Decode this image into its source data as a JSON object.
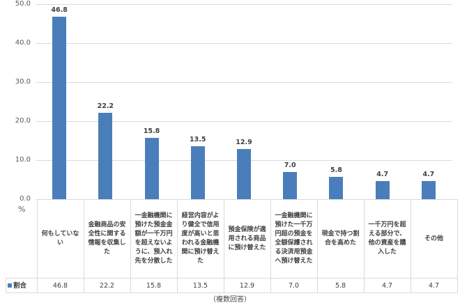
{
  "chart_data": {
    "type": "bar",
    "title": "",
    "xlabel": "",
    "ylabel": "%",
    "ylim": [
      0,
      50
    ],
    "yticks": [
      "0.0",
      "10.0",
      "20.0",
      "30.0",
      "40.0",
      "50.0"
    ],
    "grid": true,
    "legend_position": "data-table",
    "categories": [
      "何もしていない",
      "金融商品の安全性に関する情報を収集した",
      "一金融機関に預けた預金金額が一千万円を超えないように、預入れ先を分散した",
      "経営内容がより健全で信用度が高いと思われる金融機関に預け替えた",
      "預金保険が適用される商品に預け替えた",
      "一金融機関に預けた一千万円超の預金を全額保護される決済用預金へ預け替えた",
      "現金で持つ割合を高めた",
      "一千万円を超える部分で、他の資産を購入した",
      "その他"
    ],
    "series": [
      {
        "name": "割合",
        "color": "#4a7ebb",
        "values": [
          46.8,
          22.2,
          15.8,
          13.5,
          12.9,
          7.0,
          5.8,
          4.7,
          4.7
        ]
      }
    ],
    "value_labels": [
      "46.8",
      "22.2",
      "15.8",
      "13.5",
      "12.9",
      "7.0",
      "5.8",
      "4.7",
      "4.7"
    ],
    "data_table": true,
    "note": "（複数回答）"
  },
  "labels": {
    "unit": "%",
    "series_name": "割合",
    "note": "（複数回答）",
    "cat0": "何もしていない",
    "cat1": "金融商品の安全性に関する情報を収集した",
    "cat2": "一金融機関に預けた預金金額が一千万円を超えないように、預入れ先を分散した",
    "cat3": "経営内容がより健全で信用度が高いと思われる金融機関に預け替えた",
    "cat4": "預金保険が適用される商品に預け替えた",
    "cat5": "一金融機関に預けた一千万円超の預金を全額保護される決済用預金へ預け替えた",
    "cat6": "現金で持つ割合を高めた",
    "cat7": "一千万円を超える部分で、他の資産を購入した",
    "cat8": "その他"
  }
}
